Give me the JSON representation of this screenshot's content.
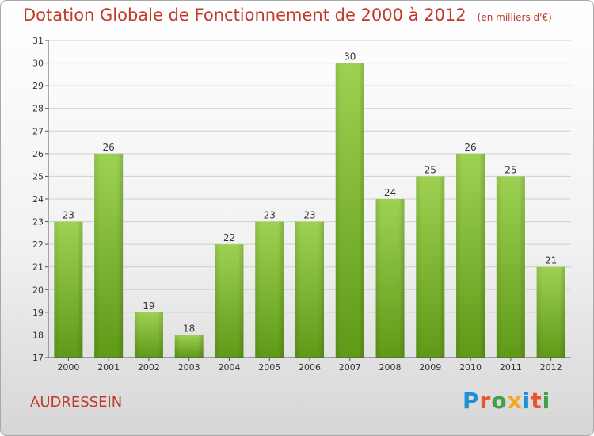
{
  "colors": {
    "accent": "#c0392b",
    "bar_top": "#9ed153",
    "bar_bottom": "#5f9a17",
    "grid": "#cfcfcf"
  },
  "logo": {
    "text": "Proxiti",
    "colors": [
      "#1f8fd6",
      "#e8542f",
      "#43a047",
      "#f5a623",
      "#1f8fd6",
      "#e8542f",
      "#43a047"
    ]
  },
  "commune": "AUDRESSEIN",
  "chart_data": {
    "type": "bar",
    "title": "Dotation Globale de Fonctionnement de 2000 à 2012",
    "subtitle": "(en milliers d'€)",
    "xlabel": "",
    "ylabel": "",
    "categories": [
      "2000",
      "2001",
      "2002",
      "2003",
      "2004",
      "2005",
      "2006",
      "2007",
      "2008",
      "2009",
      "2010",
      "2011",
      "2012"
    ],
    "values": [
      23,
      26,
      19,
      18,
      22,
      23,
      23,
      30,
      24,
      25,
      26,
      25,
      21
    ],
    "ylim": [
      17,
      31
    ],
    "yticks": [
      17,
      18,
      19,
      20,
      21,
      22,
      23,
      24,
      25,
      26,
      27,
      28,
      29,
      30,
      31
    ],
    "grid": true,
    "data_labels": true
  }
}
